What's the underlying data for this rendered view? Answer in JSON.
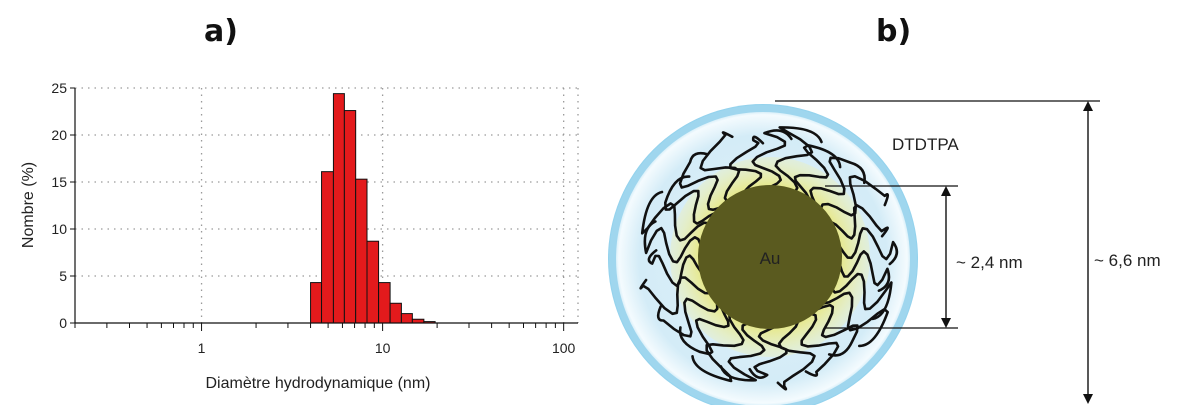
{
  "panels": {
    "a_label": "a)",
    "b_label": "b)"
  },
  "chart_data": {
    "type": "bar",
    "xscale": "log",
    "xlabel": "Diamètre hydrodynamique (nm)",
    "ylabel": "Nombre (%)",
    "xlim": [
      0.2,
      120
    ],
    "ylim": [
      0,
      25
    ],
    "grid": true,
    "xticks": [
      {
        "value": 1,
        "label": "1"
      },
      {
        "value": 10,
        "label": "10"
      },
      {
        "value": 100,
        "label": "100"
      }
    ],
    "yticks": [
      0,
      5,
      10,
      15,
      20,
      25
    ],
    "bar_color": "#e31a1c",
    "bins": [
      {
        "lo": 4.0,
        "hi": 4.6,
        "value": 4.3
      },
      {
        "lo": 4.6,
        "hi": 5.35,
        "value": 16.1
      },
      {
        "lo": 5.35,
        "hi": 6.15,
        "value": 24.4
      },
      {
        "lo": 6.15,
        "hi": 7.1,
        "value": 22.6
      },
      {
        "lo": 7.1,
        "hi": 8.2,
        "value": 15.3
      },
      {
        "lo": 8.2,
        "hi": 9.5,
        "value": 8.7
      },
      {
        "lo": 9.5,
        "hi": 11.0,
        "value": 4.3
      },
      {
        "lo": 11.0,
        "hi": 12.7,
        "value": 2.1
      },
      {
        "lo": 12.7,
        "hi": 14.6,
        "value": 1.0
      },
      {
        "lo": 14.6,
        "hi": 16.9,
        "value": 0.4
      },
      {
        "lo": 16.9,
        "hi": 19.5,
        "value": 0.15
      }
    ]
  },
  "diagram": {
    "core_label": "Au",
    "shell_label": "DTDTPA",
    "core_size_label": "~ 2,4 nm",
    "total_size_label": "~ 6,6 nm",
    "colors": {
      "core": "#5a5a1f",
      "inner_glow": "#e6e88a",
      "shell": "#bfe3f2",
      "halo": "#8fd0ec",
      "ligand": "#111111"
    }
  }
}
